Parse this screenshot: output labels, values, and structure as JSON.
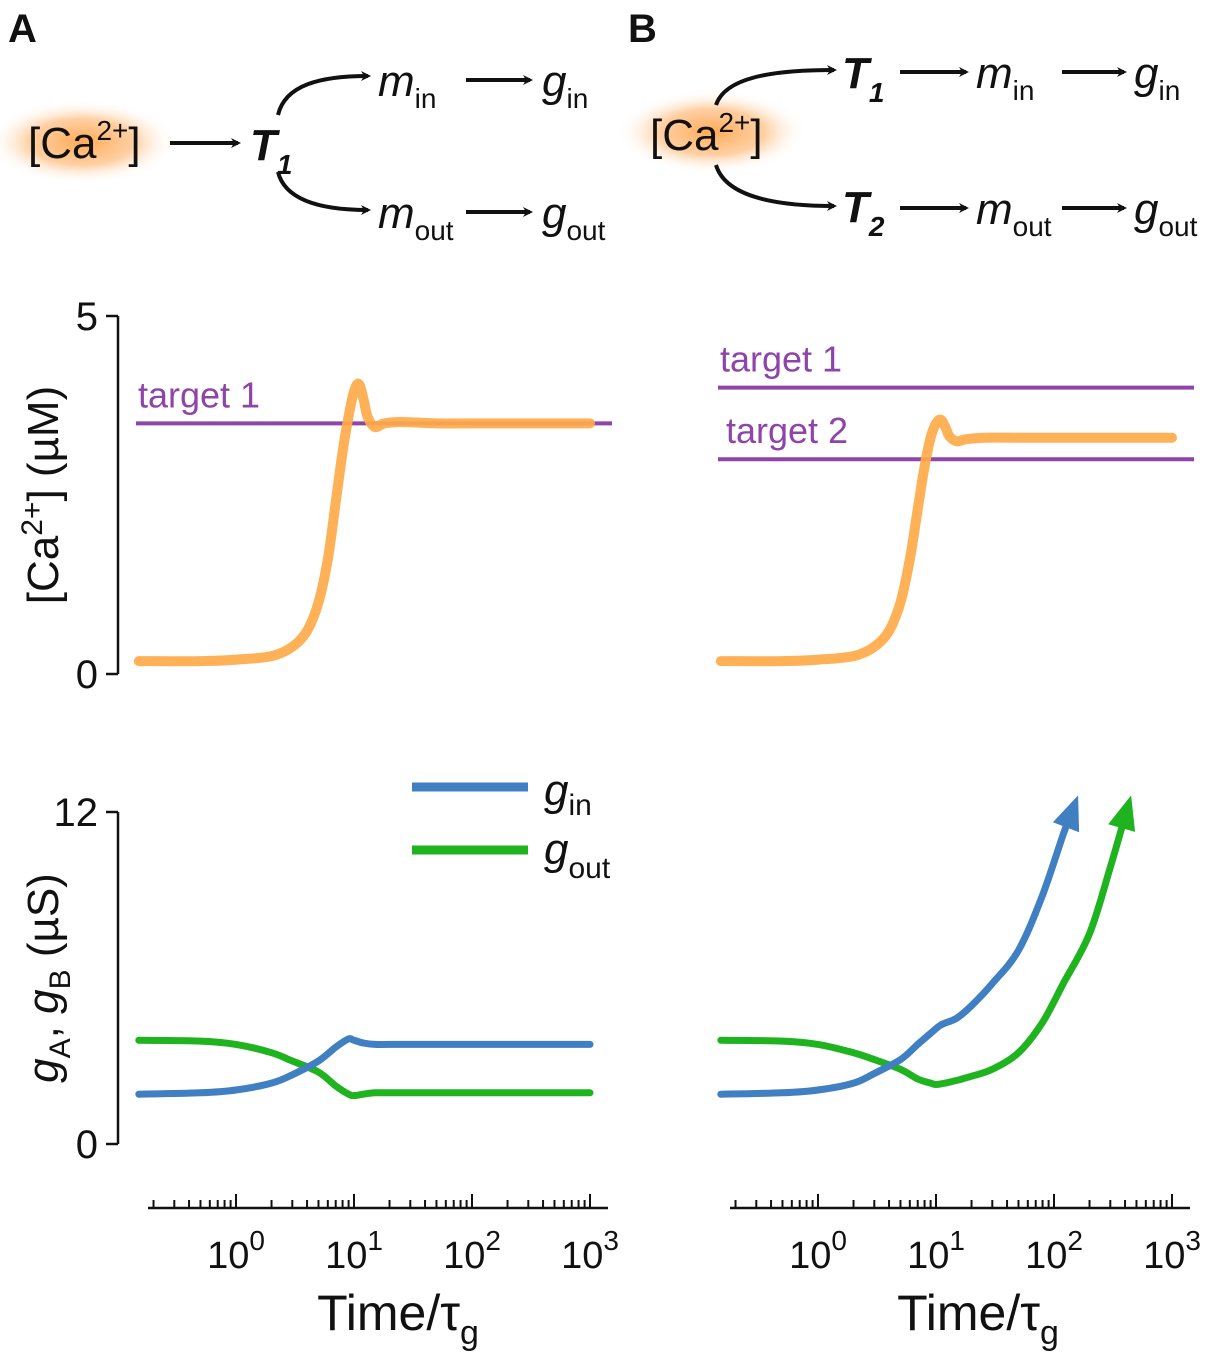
{
  "panels": {
    "a": "A",
    "b": "B"
  },
  "diagram_a": {
    "source": "[Ca",
    "source_sup": "2+",
    "source_close": "]",
    "sensor": "T",
    "sensor_sub": "1",
    "m_in": "m",
    "m_in_sub": "in",
    "g_in": "g",
    "g_in_sub": "in",
    "m_out": "m",
    "m_out_sub": "out",
    "g_out": "g",
    "g_out_sub": "out"
  },
  "diagram_b": {
    "source": "[Ca",
    "source_sup": "2+",
    "source_close": "]",
    "sensor1": "T",
    "sensor1_sub": "1",
    "sensor2": "T",
    "sensor2_sub": "2",
    "m_in": "m",
    "m_in_sub": "in",
    "g_in": "g",
    "g_in_sub": "in",
    "m_out": "m",
    "m_out_sub": "out",
    "g_out": "g",
    "g_out_sub": "out"
  },
  "colors": {
    "calcium": "#ffaa4a",
    "target": "#8e44a8",
    "g_in": "#3f7fc2",
    "g_out": "#1fb31f",
    "glow": "#ffa64d"
  },
  "chart_data": [
    {
      "panel": "A",
      "type": "line",
      "ylabel": "[Ca2+] (µM)",
      "ylabel_parts": {
        "pre": "[Ca",
        "sup": "2+",
        "post": "] (µM)"
      },
      "ylim": [
        0,
        5
      ],
      "yticks": [
        "0",
        "5"
      ],
      "xscale": "log",
      "xlim": [
        0.15,
        1000
      ],
      "targets": [
        {
          "label": "target 1",
          "value": 3.5
        }
      ],
      "series": [
        {
          "color": "calcium",
          "x": [
            0.15,
            0.5,
            1,
            2,
            3,
            4,
            5,
            6,
            7,
            8,
            9,
            10,
            11,
            12,
            13,
            15,
            18,
            25,
            50,
            100,
            1000
          ],
          "y": [
            0.18,
            0.18,
            0.2,
            0.25,
            0.38,
            0.6,
            1.0,
            1.6,
            2.4,
            3.1,
            3.6,
            3.95,
            4.05,
            3.85,
            3.6,
            3.45,
            3.5,
            3.52,
            3.5,
            3.5,
            3.5
          ]
        }
      ]
    },
    {
      "panel": "B",
      "type": "line",
      "ylim": [
        0,
        5
      ],
      "xscale": "log",
      "xlim": [
        0.15,
        1000
      ],
      "targets": [
        {
          "label": "target 1",
          "value": 4.0
        },
        {
          "label": "target 2",
          "value": 3.0
        }
      ],
      "series": [
        {
          "color": "calcium",
          "x": [
            0.15,
            0.5,
            1,
            2,
            3,
            4,
            5,
            6,
            7,
            8,
            9,
            10,
            11,
            12,
            13,
            15,
            18,
            25,
            50,
            100,
            1000
          ],
          "y": [
            0.18,
            0.18,
            0.2,
            0.25,
            0.38,
            0.6,
            1.0,
            1.6,
            2.3,
            2.9,
            3.3,
            3.5,
            3.55,
            3.45,
            3.32,
            3.25,
            3.28,
            3.3,
            3.3,
            3.3,
            3.3
          ]
        }
      ]
    },
    {
      "panel": "A",
      "type": "line",
      "ylabel_parts": {
        "g1": "g",
        "s1": "A",
        "mid": ", ",
        "g2": "g",
        "s2": "B",
        "post": " (µS)"
      },
      "ylim": [
        0,
        12
      ],
      "yticks": [
        "0",
        "12"
      ],
      "xscale": "log",
      "xlim": [
        0.15,
        1000
      ],
      "legend": [
        {
          "label": "g",
          "sub": "in",
          "color": "g_in"
        },
        {
          "label": "g",
          "sub": "out",
          "color": "g_out"
        }
      ],
      "legend_position": "top-right",
      "series": [
        {
          "name": "g_in",
          "color": "g_in",
          "x": [
            0.15,
            0.5,
            1,
            2,
            3,
            5,
            7,
            9,
            10,
            12,
            15,
            20,
            50,
            100,
            1000
          ],
          "y": [
            1.8,
            1.85,
            1.95,
            2.2,
            2.5,
            3.0,
            3.5,
            3.8,
            3.75,
            3.65,
            3.6,
            3.6,
            3.6,
            3.6,
            3.6
          ]
        },
        {
          "name": "g_out",
          "color": "g_out",
          "x": [
            0.15,
            0.5,
            1,
            2,
            3,
            5,
            7,
            9,
            10,
            12,
            15,
            20,
            50,
            100,
            1000
          ],
          "y": [
            3.75,
            3.72,
            3.6,
            3.3,
            3.0,
            2.6,
            2.1,
            1.8,
            1.75,
            1.8,
            1.85,
            1.85,
            1.85,
            1.85,
            1.85
          ]
        }
      ]
    },
    {
      "panel": "B",
      "type": "line",
      "ylim": [
        0,
        12
      ],
      "xscale": "log",
      "xlim": [
        0.15,
        1000
      ],
      "xlabel_parts": {
        "pre": "Time/",
        "tau": "τ",
        "sub": "g"
      },
      "xticks": [
        {
          "base": "10",
          "exp": "0"
        },
        {
          "base": "10",
          "exp": "1"
        },
        {
          "base": "10",
          "exp": "2"
        },
        {
          "base": "10",
          "exp": "3"
        }
      ],
      "series": [
        {
          "name": "g_in",
          "color": "g_in",
          "x": [
            0.15,
            0.5,
            1,
            2,
            3,
            5,
            7,
            9,
            11,
            15,
            20,
            30,
            50,
            80,
            120,
            160
          ],
          "y": [
            1.8,
            1.85,
            1.95,
            2.2,
            2.55,
            3.05,
            3.6,
            4.0,
            4.3,
            4.55,
            5.0,
            5.8,
            7.0,
            9.0,
            11.2,
            12.6
          ]
        },
        {
          "name": "g_out",
          "color": "g_out",
          "x": [
            0.15,
            0.5,
            1,
            2,
            3,
            5,
            7,
            9,
            10,
            12,
            15,
            20,
            30,
            50,
            80,
            120,
            200,
            300,
            450
          ],
          "y": [
            3.75,
            3.72,
            3.6,
            3.3,
            3.05,
            2.7,
            2.35,
            2.2,
            2.15,
            2.2,
            2.3,
            2.45,
            2.7,
            3.3,
            4.4,
            5.8,
            7.6,
            10.0,
            12.6
          ]
        }
      ]
    }
  ]
}
